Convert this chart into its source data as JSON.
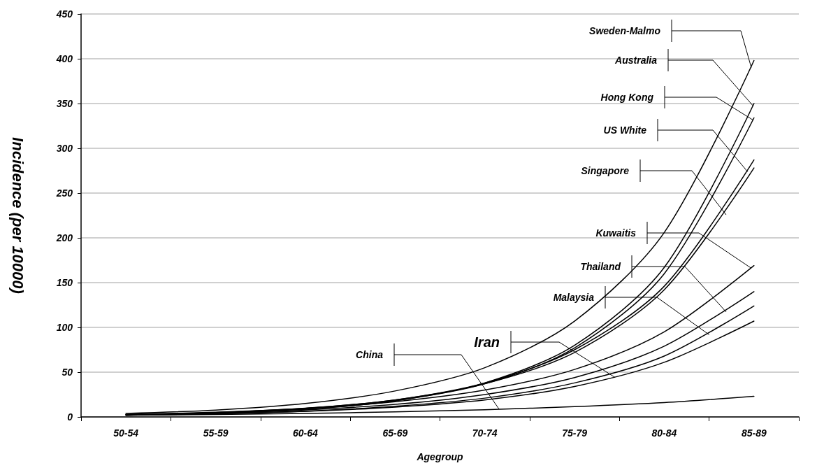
{
  "chart_data": {
    "type": "line",
    "xlabel": "Agegroup",
    "ylabel": "Incidence (per 10000)",
    "categories": [
      "50-54",
      "55-59",
      "60-64",
      "65-69",
      "70-74",
      "75-79",
      "80-84",
      "85-89"
    ],
    "ylim": [
      0,
      450
    ],
    "yticks": [
      0,
      50,
      100,
      150,
      200,
      250,
      300,
      350,
      400,
      450
    ],
    "grid": "y",
    "legend": "right",
    "marker": "none",
    "line_style": "solid",
    "series": [
      {
        "name": "Sweden-Malmo",
        "color": "#000000",
        "values": [
          4,
          7.7,
          15,
          29,
          55,
          107,
          206,
          398
        ]
      },
      {
        "name": "Australia",
        "color": "#000000",
        "values": [
          2,
          4.2,
          8.7,
          18,
          38,
          80,
          167,
          350
        ]
      },
      {
        "name": "Hong Kong",
        "color": "#000000",
        "values": [
          2,
          4.2,
          8.6,
          18,
          37,
          77,
          160,
          334
        ]
      },
      {
        "name": "US White",
        "color": "#000000",
        "values": [
          2.5,
          4.9,
          9.7,
          19,
          38,
          75,
          146,
          287
        ]
      },
      {
        "name": "Singapore",
        "color": "#000000",
        "values": [
          2.5,
          4.9,
          9.6,
          19,
          37,
          72,
          142,
          278
        ]
      },
      {
        "name": "Kuwaitis",
        "color": "#000000",
        "values": [
          3,
          5.3,
          9.5,
          17,
          30,
          53,
          95,
          169
        ]
      },
      {
        "name": "Thailand",
        "color": "#000000",
        "values": [
          2.5,
          4.4,
          7.9,
          14,
          25,
          44,
          79,
          140
        ]
      },
      {
        "name": "Malaysia",
        "color": "#000000",
        "values": [
          2,
          3.6,
          6.5,
          12,
          21,
          38,
          68,
          124
        ]
      },
      {
        "name": "Iran",
        "color": "#000000",
        "values": [
          2,
          3.5,
          6.2,
          11,
          19,
          34,
          61,
          107
        ]
      },
      {
        "name": "China",
        "color": "#000000",
        "values": [
          2,
          2.8,
          4,
          5.7,
          8.1,
          11.5,
          16,
          23
        ]
      }
    ]
  }
}
